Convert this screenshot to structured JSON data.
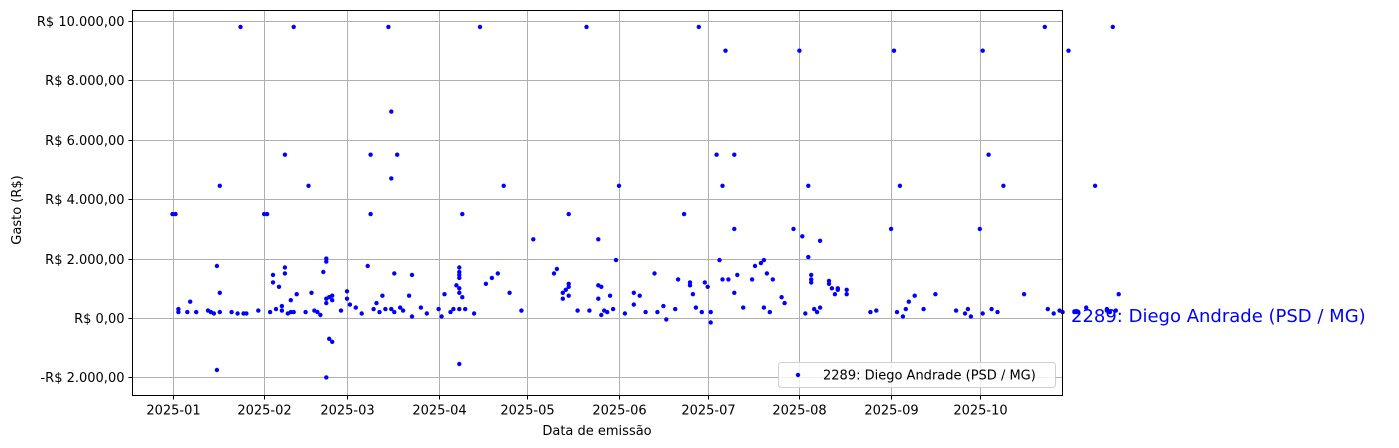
{
  "chart_data": {
    "type": "scatter",
    "title": "",
    "xlabel": "Data de emissão",
    "ylabel": "Gasto (R$)",
    "x_tick_labels": [
      "2025-01",
      "2025-02",
      "2025-03",
      "2025-04",
      "2025-05",
      "2025-06",
      "2025-07",
      "2025-08",
      "2025-09",
      "2025-10"
    ],
    "y_tick_labels": [
      "-R$ 2.000,00",
      "R$ 0,00",
      "R$ 2.000,00",
      "R$ 4.000,00",
      "R$ 6.000,00",
      "R$ 8.000,00",
      "R$ 10.000,00"
    ],
    "y_tick_values": [
      -2000,
      0,
      2000,
      4000,
      6000,
      8000,
      10000
    ],
    "ylim": [
      -2600,
      10400
    ],
    "xlim": [
      "2024-12-18",
      "2025-10-29"
    ],
    "grid": true,
    "legend_position": "lower right",
    "series": [
      {
        "name": "2289: Diego Andrade (PSD / MG)",
        "color": "#0000ff",
        "points_day_of_year_value": [
          [
            0,
            3500
          ],
          [
            1,
            3500
          ],
          [
            2,
            300
          ],
          [
            2,
            200
          ],
          [
            5,
            200
          ],
          [
            6,
            550
          ],
          [
            8,
            200
          ],
          [
            12,
            250
          ],
          [
            13,
            200
          ],
          [
            14,
            150
          ],
          [
            15,
            1750
          ],
          [
            15,
            -1750
          ],
          [
            16,
            200
          ],
          [
            16,
            4450
          ],
          [
            16,
            850
          ],
          [
            20,
            200
          ],
          [
            22,
            150
          ],
          [
            24,
            150
          ],
          [
            23,
            9800
          ],
          [
            25,
            150
          ],
          [
            29,
            250
          ],
          [
            31,
            3500
          ],
          [
            32,
            3500
          ],
          [
            33,
            200
          ],
          [
            34,
            1450
          ],
          [
            34,
            1200
          ],
          [
            35,
            300
          ],
          [
            36,
            1050
          ],
          [
            37,
            400
          ],
          [
            37,
            250
          ],
          [
            38,
            5500
          ],
          [
            38,
            1700
          ],
          [
            38,
            1500
          ],
          [
            39,
            150
          ],
          [
            40,
            600
          ],
          [
            40,
            200
          ],
          [
            41,
            200
          ],
          [
            42,
            800
          ],
          [
            41,
            9800
          ],
          [
            45,
            200
          ],
          [
            46,
            4450
          ],
          [
            47,
            850
          ],
          [
            48,
            250
          ],
          [
            49,
            200
          ],
          [
            50,
            100
          ],
          [
            51,
            1550
          ],
          [
            52,
            1900
          ],
          [
            52,
            2000
          ],
          [
            52,
            500
          ],
          [
            52,
            650
          ],
          [
            53,
            700
          ],
          [
            53,
            -700
          ],
          [
            54,
            -800
          ],
          [
            52,
            -2000
          ],
          [
            54,
            750
          ],
          [
            54,
            600
          ],
          [
            57,
            250
          ],
          [
            59,
            900
          ],
          [
            59,
            650
          ],
          [
            60,
            450
          ],
          [
            62,
            350
          ],
          [
            64,
            150
          ],
          [
            66,
            1750
          ],
          [
            67,
            5500
          ],
          [
            67,
            3500
          ],
          [
            68,
            300
          ],
          [
            69,
            500
          ],
          [
            70,
            200
          ],
          [
            71,
            750
          ],
          [
            72,
            300
          ],
          [
            73,
            9800
          ],
          [
            74,
            6950
          ],
          [
            74,
            4700
          ],
          [
            74,
            300
          ],
          [
            75,
            1500
          ],
          [
            75,
            200
          ],
          [
            76,
            5500
          ],
          [
            77,
            350
          ],
          [
            78,
            250
          ],
          [
            80,
            750
          ],
          [
            81,
            1450
          ],
          [
            81,
            50
          ],
          [
            84,
            350
          ],
          [
            86,
            150
          ],
          [
            90,
            300
          ],
          [
            91,
            50
          ],
          [
            92,
            800
          ],
          [
            94,
            200
          ],
          [
            95,
            300
          ],
          [
            96,
            1100
          ],
          [
            97,
            850
          ],
          [
            97,
            300
          ],
          [
            97,
            1450
          ],
          [
            97,
            1550
          ],
          [
            97,
            1700
          ],
          [
            97,
            1350
          ],
          [
            97,
            1000
          ],
          [
            98,
            3500
          ],
          [
            98,
            700
          ],
          [
            97,
            -1550
          ],
          [
            99,
            300
          ],
          [
            102,
            150
          ],
          [
            104,
            9800
          ],
          [
            106,
            1150
          ],
          [
            108,
            1350
          ],
          [
            110,
            1500
          ],
          [
            112,
            4450
          ],
          [
            114,
            850
          ],
          [
            118,
            250
          ],
          [
            122,
            2650
          ],
          [
            129,
            1500
          ],
          [
            130,
            1650
          ],
          [
            132,
            850
          ],
          [
            132,
            650
          ],
          [
            133,
            950
          ],
          [
            134,
            3500
          ],
          [
            134,
            1050
          ],
          [
            134,
            750
          ],
          [
            134,
            1150
          ],
          [
            137,
            250
          ],
          [
            140,
            9800
          ],
          [
            141,
            250
          ],
          [
            144,
            650
          ],
          [
            144,
            2650
          ],
          [
            144,
            1100
          ],
          [
            145,
            1050
          ],
          [
            145,
            100
          ],
          [
            146,
            250
          ],
          [
            147,
            200
          ],
          [
            148,
            750
          ],
          [
            149,
            300
          ],
          [
            150,
            1950
          ],
          [
            151,
            4450
          ],
          [
            153,
            150
          ],
          [
            156,
            850
          ],
          [
            156,
            450
          ],
          [
            158,
            750
          ],
          [
            160,
            200
          ],
          [
            163,
            1500
          ],
          [
            164,
            200
          ],
          [
            166,
            400
          ],
          [
            167,
            -50
          ],
          [
            170,
            300
          ],
          [
            171,
            1300
          ],
          [
            173,
            3500
          ],
          [
            175,
            1200
          ],
          [
            175,
            1100
          ],
          [
            176,
            800
          ],
          [
            177,
            350
          ],
          [
            178,
            9800
          ],
          [
            179,
            200
          ],
          [
            180,
            1200
          ],
          [
            181,
            1050
          ],
          [
            182,
            -150
          ],
          [
            182,
            200
          ],
          [
            184,
            5500
          ],
          [
            185,
            1950
          ],
          [
            186,
            4450
          ],
          [
            186,
            1300
          ],
          [
            187,
            9000
          ],
          [
            188,
            1300
          ],
          [
            190,
            850
          ],
          [
            190,
            5500
          ],
          [
            190,
            3000
          ],
          [
            191,
            1450
          ],
          [
            193,
            350
          ],
          [
            196,
            1300
          ],
          [
            197,
            1750
          ],
          [
            199,
            1850
          ],
          [
            200,
            1950
          ],
          [
            200,
            350
          ],
          [
            201,
            1500
          ],
          [
            202,
            200
          ],
          [
            203,
            1300
          ],
          [
            206,
            700
          ],
          [
            207,
            500
          ],
          [
            210,
            3000
          ],
          [
            212,
            9000
          ],
          [
            213,
            2750
          ],
          [
            214,
            150
          ],
          [
            215,
            4450
          ],
          [
            215,
            2050
          ],
          [
            216,
            1450
          ],
          [
            216,
            1300
          ],
          [
            216,
            1200
          ],
          [
            217,
            300
          ],
          [
            218,
            200
          ],
          [
            219,
            2600
          ],
          [
            219,
            350
          ],
          [
            222,
            1250
          ],
          [
            222,
            1150
          ],
          [
            223,
            1000
          ],
          [
            224,
            800
          ],
          [
            225,
            950
          ],
          [
            225,
            1000
          ],
          [
            228,
            950
          ],
          [
            228,
            800
          ],
          [
            236,
            200
          ],
          [
            238,
            250
          ],
          [
            243,
            3000
          ],
          [
            244,
            9000
          ],
          [
            245,
            200
          ],
          [
            246,
            4450
          ],
          [
            247,
            50
          ],
          [
            248,
            300
          ],
          [
            249,
            550
          ],
          [
            251,
            750
          ],
          [
            254,
            300
          ],
          [
            258,
            800
          ],
          [
            265,
            250
          ],
          [
            268,
            150
          ],
          [
            269,
            300
          ],
          [
            270,
            50
          ],
          [
            273,
            3000
          ],
          [
            274,
            9000
          ],
          [
            274,
            150
          ],
          [
            276,
            5500
          ],
          [
            277,
            300
          ],
          [
            279,
            200
          ],
          [
            281,
            4450
          ],
          [
            288,
            800
          ],
          [
            296,
            300
          ],
          [
            295,
            9800
          ],
          [
            298,
            150
          ],
          [
            300,
            250
          ],
          [
            301,
            200
          ],
          [
            303,
            9000
          ],
          [
            305,
            200
          ],
          [
            306,
            200
          ],
          [
            309,
            350
          ],
          [
            312,
            4450
          ],
          [
            316,
            300
          ],
          [
            316,
            250
          ],
          [
            317,
            200
          ],
          [
            318,
            9800
          ],
          [
            319,
            250
          ],
          [
            320,
            800
          ]
        ]
      }
    ],
    "side_label": "2289: Diego Andrade (PSD / MG)"
  },
  "axes": {
    "xlabel": "Data de emissão",
    "ylabel": "Gasto (R$)"
  },
  "legend": {
    "label": "2289: Diego Andrade (PSD / MG)"
  },
  "annotation": {
    "text": "2289: Diego Andrade (PSD / MG)"
  },
  "colors": {
    "series": "#0000ff",
    "grid": "#b0b0b0",
    "axis": "#000000",
    "annotation": "#0000ff"
  }
}
